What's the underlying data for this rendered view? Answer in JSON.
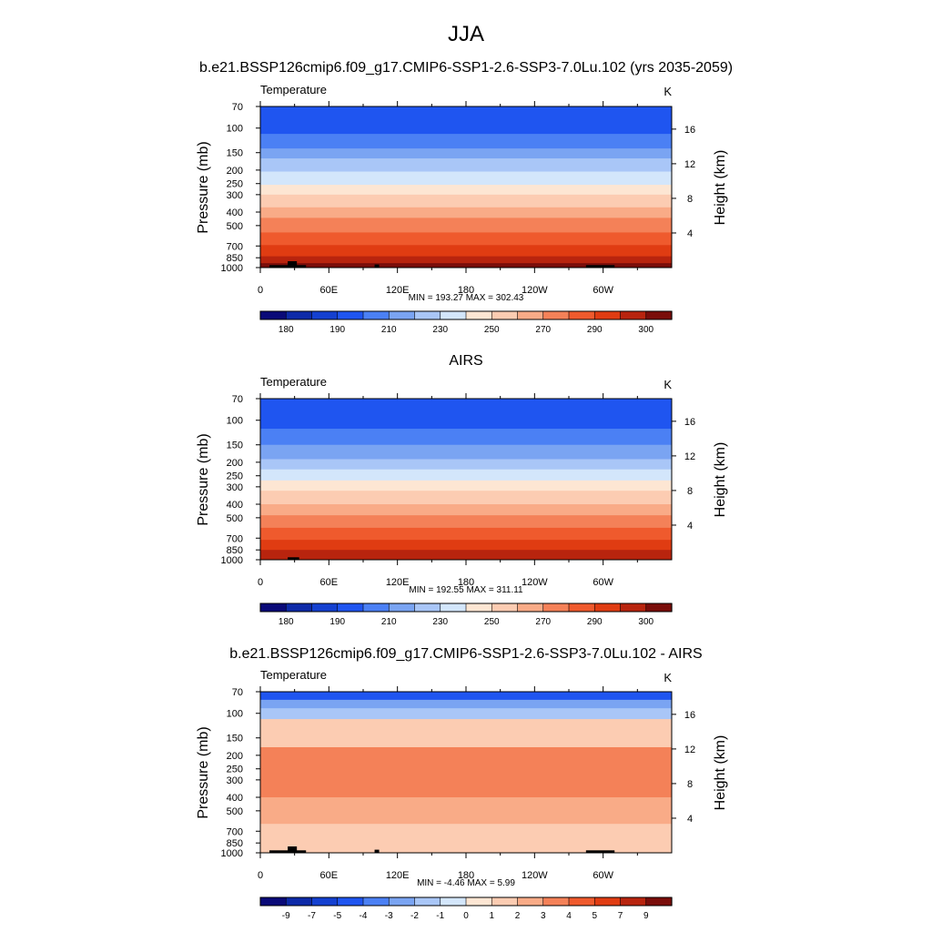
{
  "figure": {
    "title": "JJA",
    "colors": {
      "abs_palette": [
        "#0a0a78",
        "#0d2aa8",
        "#1440d0",
        "#1f55f0",
        "#4b80f4",
        "#7aa4f2",
        "#a9c6f7",
        "#d3e6fb",
        "#fde6d3",
        "#fcccb2",
        "#f9ab87",
        "#f48158",
        "#ef5a2d",
        "#e03c12",
        "#b8240e",
        "#7a0d0a"
      ],
      "diff_palette": [
        "#0a0a78",
        "#0d2aa8",
        "#1440d0",
        "#1f55f0",
        "#4b80f4",
        "#7aa4f2",
        "#a9c6f7",
        "#d3e6fb",
        "#fde6d3",
        "#fcccb2",
        "#f9ab87",
        "#f48158",
        "#ef5a2d",
        "#e03c12",
        "#b8240e",
        "#7a0d0a"
      ]
    }
  },
  "chart_data": [
    {
      "type": "heatmap",
      "title": "b.e21.BSSP126cmip6.f09_g17.CMIP6-SSP1-2.6-SSP3-7.0Lu.102 (yrs 2035-2059)",
      "left_label": "Temperature",
      "right_label": "K",
      "ylabel": "Pressure (mb)",
      "y2label": "Height (km)",
      "yticks": [
        "70",
        "100",
        "150",
        "200",
        "250",
        "300",
        "400",
        "500",
        "700",
        "850",
        "1000"
      ],
      "y2ticks": [
        "16",
        "12",
        "8",
        "4"
      ],
      "xticks": [
        "0",
        "60E",
        "120E",
        "180",
        "120W",
        "60W"
      ],
      "stats": "MIN = 193.27  MAX = 302.43",
      "colorbar_labels": [
        "180",
        "190",
        "210",
        "230",
        "250",
        "270",
        "290",
        "300"
      ],
      "bands": [
        {
          "p_top": 70,
          "p_bot": 110,
          "level": 3
        },
        {
          "p_top": 110,
          "p_bot": 140,
          "level": 4
        },
        {
          "p_top": 140,
          "p_bot": 165,
          "level": 5
        },
        {
          "p_top": 165,
          "p_bot": 205,
          "level": 6
        },
        {
          "p_top": 205,
          "p_bot": 255,
          "level": 7
        },
        {
          "p_top": 255,
          "p_bot": 300,
          "level": 8
        },
        {
          "p_top": 300,
          "p_bot": 370,
          "level": 9
        },
        {
          "p_top": 370,
          "p_bot": 440,
          "level": 10
        },
        {
          "p_top": 440,
          "p_bot": 560,
          "level": 11
        },
        {
          "p_top": 560,
          "p_bot": 690,
          "level": 12
        },
        {
          "p_top": 690,
          "p_bot": 830,
          "level": 13
        },
        {
          "p_top": 830,
          "p_bot": 930,
          "level": 14
        },
        {
          "p_top": 930,
          "p_bot": 1000,
          "level": 15
        }
      ],
      "terrain": [
        {
          "lon_start": 8,
          "lon_end": 40,
          "p_top": 960
        },
        {
          "lon_start": 24,
          "lon_end": 32,
          "p_top": 900
        },
        {
          "lon_start": 100,
          "lon_end": 104,
          "p_top": 950
        },
        {
          "lon_start": 285,
          "lon_end": 310,
          "p_top": 960
        }
      ]
    },
    {
      "type": "heatmap",
      "title": "AIRS",
      "left_label": "Temperature",
      "right_label": "K",
      "ylabel": "Pressure (mb)",
      "y2label": "Height (km)",
      "yticks": [
        "70",
        "100",
        "150",
        "200",
        "250",
        "300",
        "400",
        "500",
        "700",
        "850",
        "1000"
      ],
      "y2ticks": [
        "16",
        "12",
        "8",
        "4"
      ],
      "xticks": [
        "0",
        "60E",
        "120E",
        "180",
        "120W",
        "60W"
      ],
      "stats": "MIN = 192.55  MAX = 311.11",
      "colorbar_labels": [
        "180",
        "190",
        "210",
        "230",
        "250",
        "270",
        "290",
        "300"
      ],
      "bands": [
        {
          "p_top": 70,
          "p_bot": 115,
          "level": 3
        },
        {
          "p_top": 115,
          "p_bot": 150,
          "level": 4
        },
        {
          "p_top": 150,
          "p_bot": 190,
          "level": 5
        },
        {
          "p_top": 190,
          "p_bot": 225,
          "level": 6
        },
        {
          "p_top": 225,
          "p_bot": 270,
          "level": 7
        },
        {
          "p_top": 270,
          "p_bot": 320,
          "level": 8
        },
        {
          "p_top": 320,
          "p_bot": 400,
          "level": 9
        },
        {
          "p_top": 400,
          "p_bot": 480,
          "level": 10
        },
        {
          "p_top": 480,
          "p_bot": 590,
          "level": 11
        },
        {
          "p_top": 590,
          "p_bot": 720,
          "level": 12
        },
        {
          "p_top": 720,
          "p_bot": 850,
          "level": 13
        },
        {
          "p_top": 850,
          "p_bot": 1000,
          "level": 14
        }
      ],
      "terrain": [
        {
          "lon_start": 24,
          "lon_end": 34,
          "p_top": 960
        }
      ]
    },
    {
      "type": "heatmap",
      "title": "b.e21.BSSP126cmip6.f09_g17.CMIP6-SSP1-2.6-SSP3-7.0Lu.102 - AIRS",
      "left_label": "Temperature",
      "right_label": "K",
      "ylabel": "Pressure (mb)",
      "y2label": "Height (km)",
      "yticks": [
        "70",
        "100",
        "150",
        "200",
        "250",
        "300",
        "400",
        "500",
        "700",
        "850",
        "1000"
      ],
      "y2ticks": [
        "16",
        "12",
        "8",
        "4"
      ],
      "xticks": [
        "0",
        "60E",
        "120E",
        "180",
        "120W",
        "60W"
      ],
      "stats": "MIN =  -4.46  MAX =   5.99",
      "colorbar_labels": [
        "-9",
        "-7",
        "-5",
        "-4",
        "-3",
        "-2",
        "-1",
        "0",
        "1",
        "2",
        "3",
        "4",
        "5",
        "7",
        "9"
      ],
      "bands": [
        {
          "p_top": 70,
          "p_bot": 80,
          "level": 3
        },
        {
          "p_top": 80,
          "p_bot": 92,
          "level": 5
        },
        {
          "p_top": 92,
          "p_bot": 110,
          "level": 6
        },
        {
          "p_top": 110,
          "p_bot": 175,
          "level": 9
        },
        {
          "p_top": 175,
          "p_bot": 400,
          "level": 11
        },
        {
          "p_top": 400,
          "p_bot": 620,
          "level": 10
        },
        {
          "p_top": 620,
          "p_bot": 1000,
          "level": 9
        }
      ],
      "terrain": [
        {
          "lon_start": 8,
          "lon_end": 40,
          "p_top": 960
        },
        {
          "lon_start": 24,
          "lon_end": 32,
          "p_top": 900
        },
        {
          "lon_start": 100,
          "lon_end": 104,
          "p_top": 950
        },
        {
          "lon_start": 285,
          "lon_end": 310,
          "p_top": 960
        }
      ]
    }
  ]
}
